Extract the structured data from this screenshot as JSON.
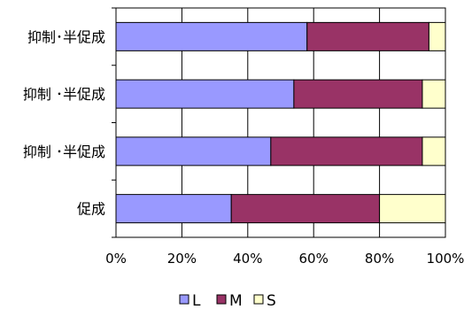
{
  "chart_data": {
    "type": "bar",
    "orientation": "horizontal",
    "stacked": "percent",
    "categories": [
      "抑制･半促成",
      "抑制 ･半促成",
      "抑制 ･半促成",
      "促成"
    ],
    "series": [
      {
        "name": "L",
        "values": [
          58,
          54,
          47,
          35
        ],
        "color": "#9999ff"
      },
      {
        "name": "M",
        "values": [
          37,
          39,
          46,
          45
        ],
        "color": "#993366"
      },
      {
        "name": "S",
        "values": [
          5,
          7,
          7,
          20
        ],
        "color": "#ffffcc"
      }
    ],
    "x_ticks": [
      "0%",
      "20%",
      "40%",
      "60%",
      "80%",
      "100%"
    ],
    "xlim": [
      0,
      100
    ],
    "grid": true,
    "legend_position": "bottom"
  }
}
